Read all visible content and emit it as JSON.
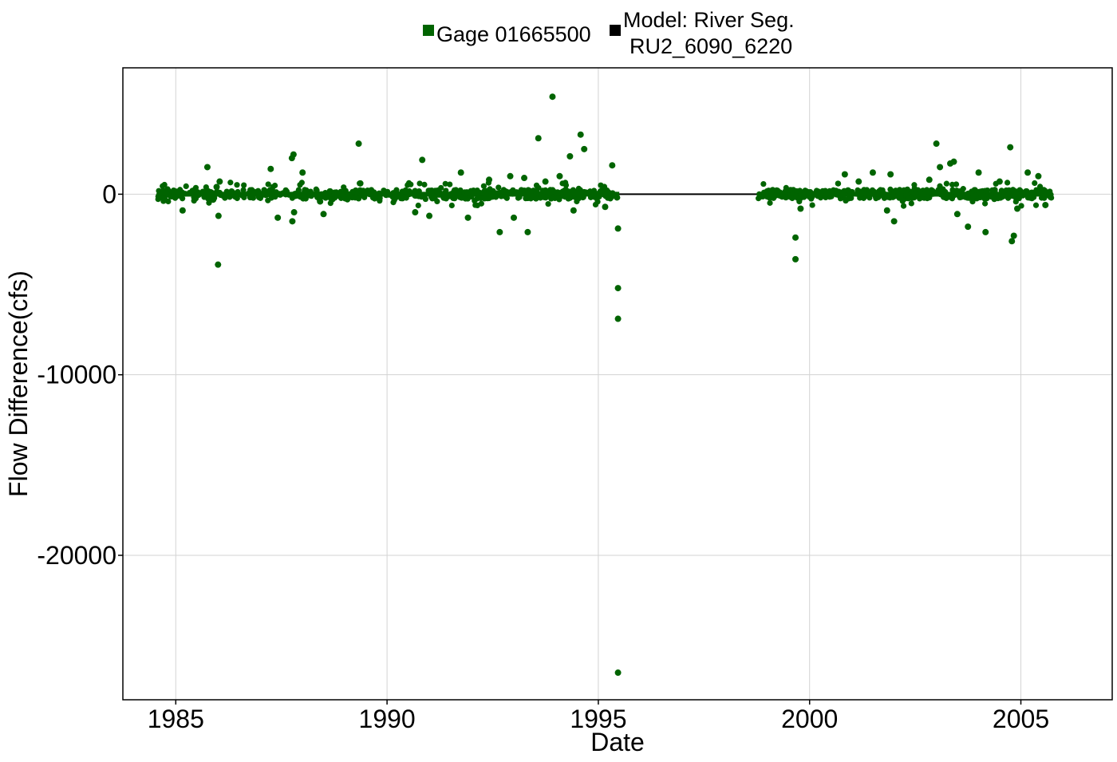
{
  "chart_data": {
    "type": "scatter",
    "xlabel": "Date",
    "ylabel": "Flow Difference(cfs)",
    "xlim": [
      "1983-10-01",
      "2007-03-01"
    ],
    "ylim": [
      -28000,
      7000
    ],
    "x_ticks": [
      {
        "value": "1985-01-01",
        "label": "1985"
      },
      {
        "value": "1990-01-01",
        "label": "1990"
      },
      {
        "value": "1995-01-01",
        "label": "1995"
      },
      {
        "value": "2000-01-01",
        "label": "2000"
      },
      {
        "value": "2005-01-01",
        "label": "2005"
      }
    ],
    "y_ticks": [
      {
        "value": 0,
        "label": "0"
      },
      {
        "value": -10000,
        "label": "-10000"
      },
      {
        "value": -20000,
        "label": "-20000"
      }
    ],
    "grid": true,
    "legend_position": "top-center",
    "legend": [
      {
        "label": "Gage 01665500",
        "color": "#006400"
      },
      {
        "label_lines": [
          "Model: River Seg.",
          "RU2_6090_6220"
        ],
        "color": "#000000"
      }
    ],
    "series": [
      {
        "name": "Gage 01665500",
        "color": "#006400",
        "marker": "point",
        "dense_bands": [
          {
            "from": "1984-08-01",
            "to": "1995-07-01"
          },
          {
            "from": "1998-10-15",
            "to": "2005-09-30"
          }
        ],
        "points": [
          [
            "1985-10-01",
            1500
          ],
          [
            "1985-11-20",
            -300
          ],
          [
            "1986-01-01",
            -3900
          ],
          [
            "1986-01-15",
            700
          ],
          [
            "1985-03-01",
            -900
          ],
          [
            "1986-01-05",
            -1200
          ],
          [
            "1985-12-20",
            400
          ],
          [
            "1987-04-01",
            1400
          ],
          [
            "1987-06-01",
            -1300
          ],
          [
            "1987-10-01",
            2000
          ],
          [
            "1987-10-15",
            2200
          ],
          [
            "1987-10-05",
            -1500
          ],
          [
            "1987-10-20",
            -1000
          ],
          [
            "1988-01-01",
            1200
          ],
          [
            "1988-06-01",
            -400
          ],
          [
            "1988-07-01",
            -1100
          ],
          [
            "1989-05-01",
            2800
          ],
          [
            "1989-05-15",
            600
          ],
          [
            "1990-11-01",
            1900
          ],
          [
            "1990-09-01",
            -1000
          ],
          [
            "1991-01-01",
            -1200
          ],
          [
            "1991-10-01",
            1200
          ],
          [
            "1991-12-01",
            -1300
          ],
          [
            "1992-06-01",
            800
          ],
          [
            "1992-12-01",
            1000
          ],
          [
            "1993-04-01",
            900
          ],
          [
            "1993-01-01",
            -1300
          ],
          [
            "1993-05-01",
            -2100
          ],
          [
            "1993-08-01",
            3100
          ],
          [
            "1992-09-01",
            -2100
          ],
          [
            "1993-10-01",
            700
          ],
          [
            "1993-12-01",
            5400
          ],
          [
            "1994-02-01",
            1000
          ],
          [
            "1994-05-01",
            2100
          ],
          [
            "1994-08-01",
            3300
          ],
          [
            "1994-09-01",
            2500
          ],
          [
            "1994-06-01",
            -900
          ],
          [
            "1995-05-01",
            1600
          ],
          [
            "1995-03-01",
            -700
          ],
          [
            "1995-06-20",
            -1900
          ],
          [
            "1995-06-20",
            -5200
          ],
          [
            "1995-06-20",
            -6900
          ],
          [
            "1995-06-20",
            -26500
          ],
          [
            "1999-09-01",
            -2400
          ],
          [
            "1999-09-01",
            -3600
          ],
          [
            "1999-10-15",
            -800
          ],
          [
            "2000-11-01",
            1100
          ],
          [
            "2001-03-01",
            700
          ],
          [
            "2001-07-01",
            1200
          ],
          [
            "2001-12-01",
            1100
          ],
          [
            "2001-11-01",
            -900
          ],
          [
            "2002-01-01",
            -1500
          ],
          [
            "2002-11-01",
            800
          ],
          [
            "2003-01-01",
            2800
          ],
          [
            "2003-02-01",
            1500
          ],
          [
            "2003-05-01",
            1700
          ],
          [
            "2003-06-01",
            1800
          ],
          [
            "2003-07-01",
            -1100
          ],
          [
            "2003-10-01",
            -1800
          ],
          [
            "2004-01-01",
            1200
          ],
          [
            "2004-03-01",
            -2100
          ],
          [
            "2004-07-01",
            700
          ],
          [
            "2004-10-01",
            2600
          ],
          [
            "2004-10-15",
            -2600
          ],
          [
            "2004-11-01",
            -2300
          ],
          [
            "2005-03-01",
            1200
          ],
          [
            "2005-06-01",
            1000
          ],
          [
            "2005-08-01",
            -600
          ],
          [
            "2004-12-01",
            -800
          ]
        ]
      },
      {
        "name": "Model: River Seg. RU2_6090_6220",
        "color": "#000000",
        "marker": "line",
        "x": [
          "1984-08-01",
          "2005-09-30"
        ],
        "values": [
          0,
          0
        ]
      }
    ]
  }
}
